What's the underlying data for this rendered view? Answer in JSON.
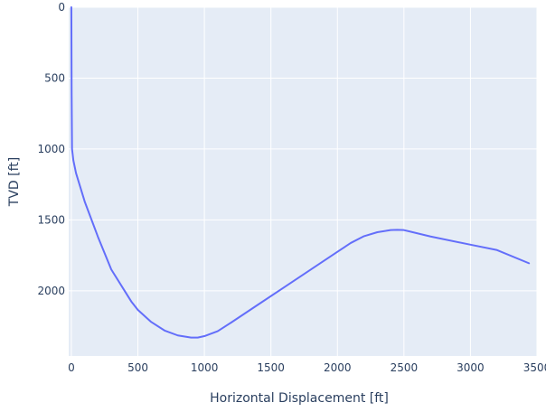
{
  "chart_data": {
    "type": "line",
    "title": "",
    "xlabel": "Horizontal Displacement [ft]",
    "ylabel": "TVD [ft]",
    "xlim": [
      -20,
      3500
    ],
    "ylim": [
      2460,
      0
    ],
    "y_reversed": true,
    "grid": true,
    "legend": "none",
    "x_ticks": [
      0,
      500,
      1000,
      1500,
      2000,
      2500,
      3000,
      3500
    ],
    "y_ticks": [
      0,
      500,
      1000,
      1500,
      2000
    ],
    "colors": {
      "plot_bg": "#e5ecf6",
      "grid": "#ffffff",
      "line": "#636efa",
      "text": "#2a3f5f"
    },
    "series": [
      {
        "x": [
          0,
          2,
          5,
          15,
          35,
          100,
          200,
          300,
          400,
          450,
          500,
          600,
          700,
          800,
          900,
          950,
          1000,
          1100,
          1200,
          1400,
          1600,
          1800,
          2000,
          2100,
          2200,
          2300,
          2400,
          2450,
          2500,
          2700,
          3000,
          3200,
          3440
        ],
        "y": [
          0,
          600,
          1000,
          1080,
          1170,
          1370,
          1620,
          1850,
          2000,
          2075,
          2135,
          2220,
          2280,
          2315,
          2330,
          2330,
          2320,
          2285,
          2225,
          2100,
          1975,
          1850,
          1725,
          1663,
          1615,
          1587,
          1572,
          1570,
          1572,
          1617,
          1675,
          1713,
          1806
        ]
      }
    ]
  }
}
